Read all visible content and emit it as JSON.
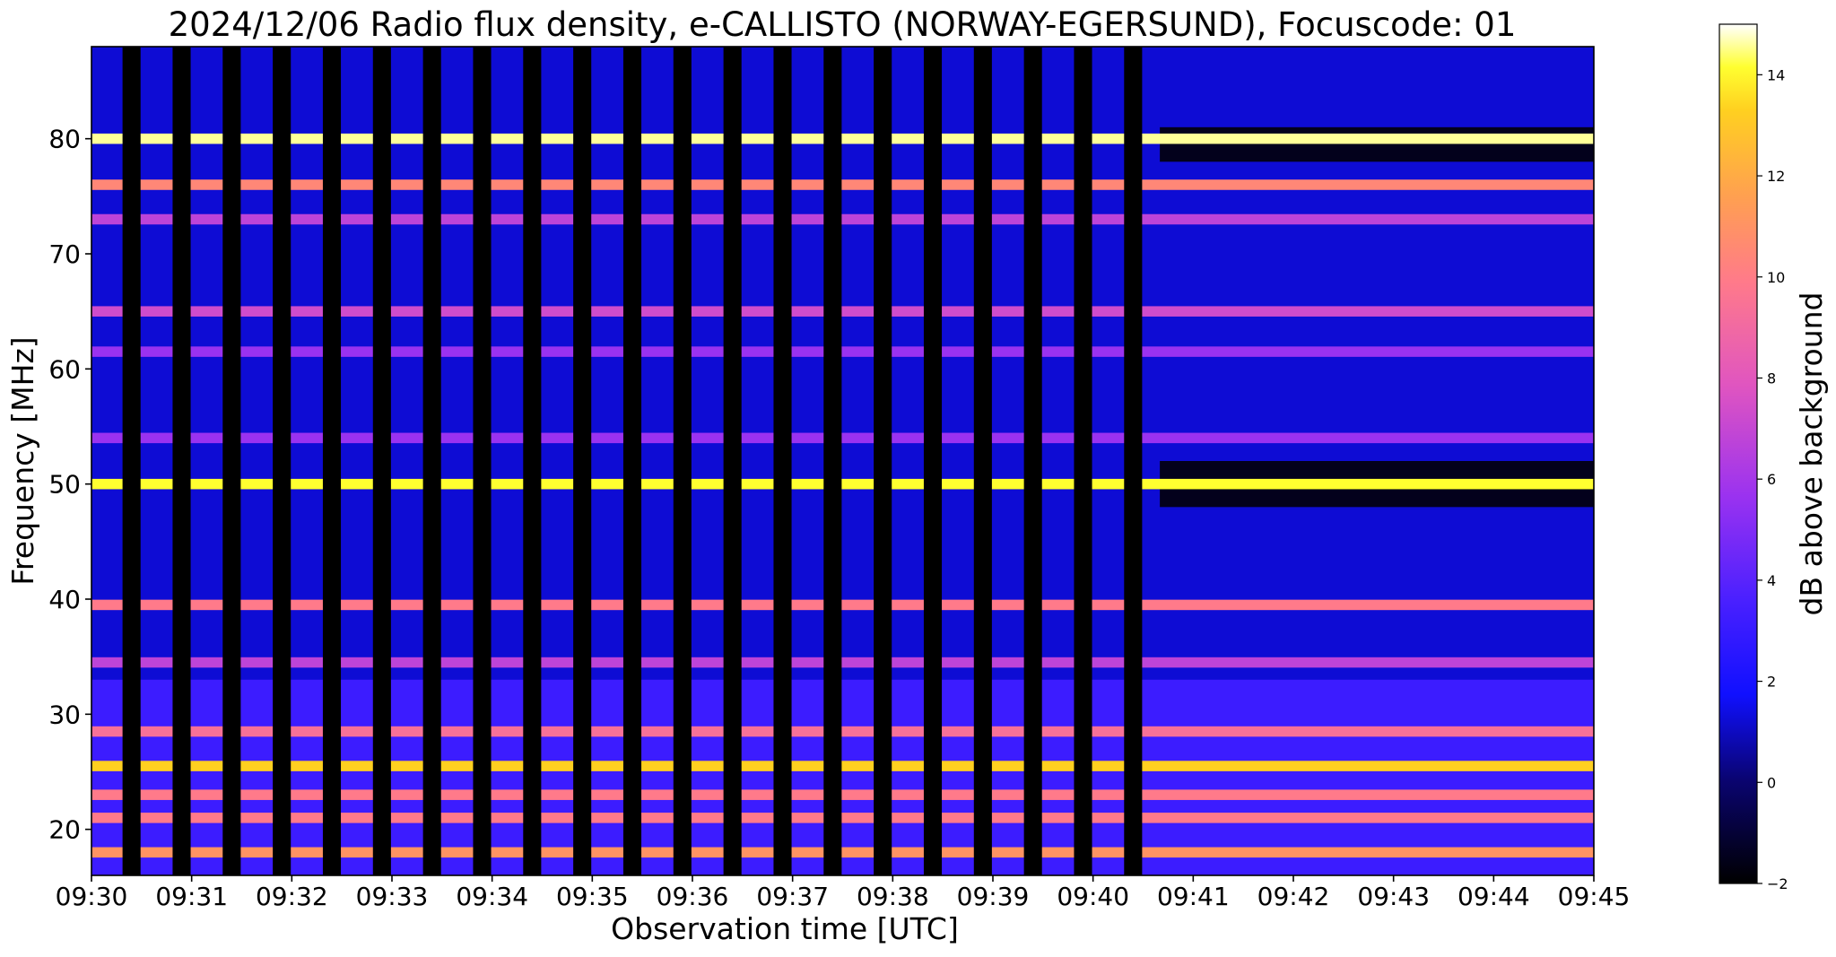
{
  "chart_data": {
    "type": "heatmap",
    "title": "2024/12/06  Radio flux density, e-CALLISTO (NORWAY-EGERSUND), Focuscode: 01",
    "xlabel": "Observation time [UTC]",
    "ylabel": "Frequency [MHz]",
    "colorbar_label": "dB above background",
    "colormap": "gnuplot2",
    "x_ticks": [
      "09:30",
      "09:31",
      "09:32",
      "09:33",
      "09:34",
      "09:35",
      "09:36",
      "09:37",
      "09:38",
      "09:39",
      "09:40",
      "09:41",
      "09:42",
      "09:43",
      "09:44",
      "09:45"
    ],
    "y_ticks": [
      "20",
      "30",
      "40",
      "50",
      "60",
      "70",
      "80"
    ],
    "colorbar_ticks": [
      "14",
      "12",
      "10",
      "8",
      "6",
      "4",
      "2",
      "0",
      "−2"
    ],
    "xlim": [
      "09:30",
      "09:45"
    ],
    "ylim": [
      16,
      88
    ],
    "colorbar_range": [
      -2,
      15
    ],
    "pulsed_segment_end": "09:40:40",
    "pulse_period_seconds": 30,
    "frequency_bands": [
      {
        "mhz": 80.0,
        "db": 14.5
      },
      {
        "mhz": 76.0,
        "db": 10.5
      },
      {
        "mhz": 73.0,
        "db": 7.0
      },
      {
        "mhz": 65.0,
        "db": 7.5
      },
      {
        "mhz": 61.5,
        "db": 6.0
      },
      {
        "mhz": 54.0,
        "db": 6.0
      },
      {
        "mhz": 50.0,
        "db": 14.0
      },
      {
        "mhz": 39.5,
        "db": 10.0
      },
      {
        "mhz": 34.5,
        "db": 7.0
      },
      {
        "mhz": 28.5,
        "db": 9.5
      },
      {
        "mhz": 25.5,
        "db": 13.0
      },
      {
        "mhz": 23.0,
        "db": 10.0
      },
      {
        "mhz": 21.0,
        "db": 10.0
      },
      {
        "mhz": 18.0,
        "db": 11.0
      }
    ]
  }
}
